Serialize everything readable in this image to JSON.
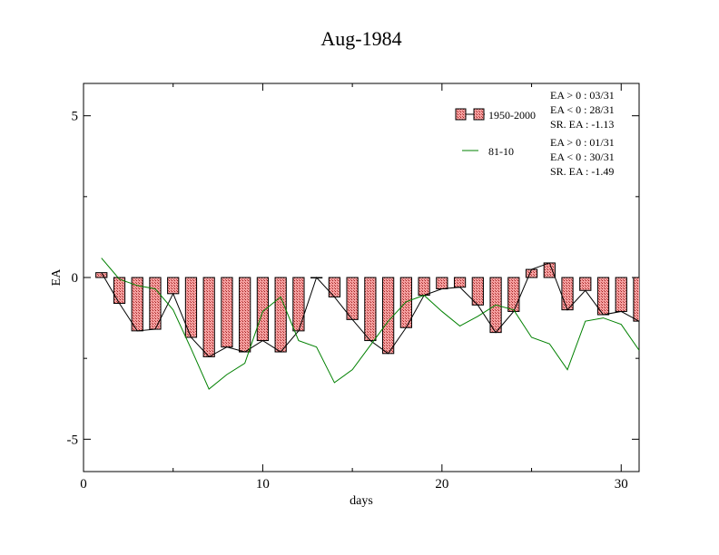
{
  "chart_data": {
    "type": "bar",
    "title": "Aug-1984",
    "xlabel": "days",
    "ylabel": "EA",
    "xlim": [
      0,
      31
    ],
    "ylim": [
      -6,
      6
    ],
    "xticks": [
      0,
      10,
      20,
      30
    ],
    "yticks": [
      -5,
      0,
      5
    ],
    "x": [
      1,
      2,
      3,
      4,
      5,
      6,
      7,
      8,
      9,
      10,
      11,
      12,
      13,
      14,
      15,
      16,
      17,
      18,
      19,
      20,
      21,
      22,
      23,
      24,
      25,
      26,
      27,
      28,
      29,
      30,
      31
    ],
    "series": [
      {
        "name": "1950-2000",
        "kind": "bar",
        "color": "#f08080",
        "values": [
          0.15,
          -0.8,
          -1.65,
          -1.6,
          -0.5,
          -1.85,
          -2.45,
          -2.15,
          -2.3,
          -1.95,
          -2.3,
          -1.65,
          0.0,
          -0.6,
          -1.3,
          -1.95,
          -2.35,
          -1.55,
          -0.55,
          -0.35,
          -0.3,
          -0.85,
          -1.7,
          -1.05,
          0.25,
          0.45,
          -1.0,
          -0.4,
          -1.15,
          -1.05,
          -1.35
        ]
      },
      {
        "name": "81-10",
        "kind": "line",
        "color": "#008000",
        "values": [
          0.6,
          -0.05,
          -0.25,
          -0.35,
          -1.0,
          -2.2,
          -3.45,
          -3.0,
          -2.65,
          -1.05,
          -0.6,
          -1.95,
          -2.15,
          -3.25,
          -2.85,
          -2.1,
          -1.35,
          -0.75,
          -0.55,
          -1.05,
          -1.5,
          -1.2,
          -0.85,
          -1.0,
          -1.85,
          -2.05,
          -2.85,
          -1.35,
          -1.25,
          -1.45,
          -2.25
        ]
      }
    ],
    "grid": false,
    "legend_position": "top-right",
    "annotations": {
      "group1": [
        "EA > 0 : 03/31",
        "EA < 0 : 28/31",
        "SR. EA : -1.13"
      ],
      "group2": [
        "EA > 0 : 01/31",
        "EA < 0 : 30/31",
        "SR. EA : -1.49"
      ]
    }
  }
}
